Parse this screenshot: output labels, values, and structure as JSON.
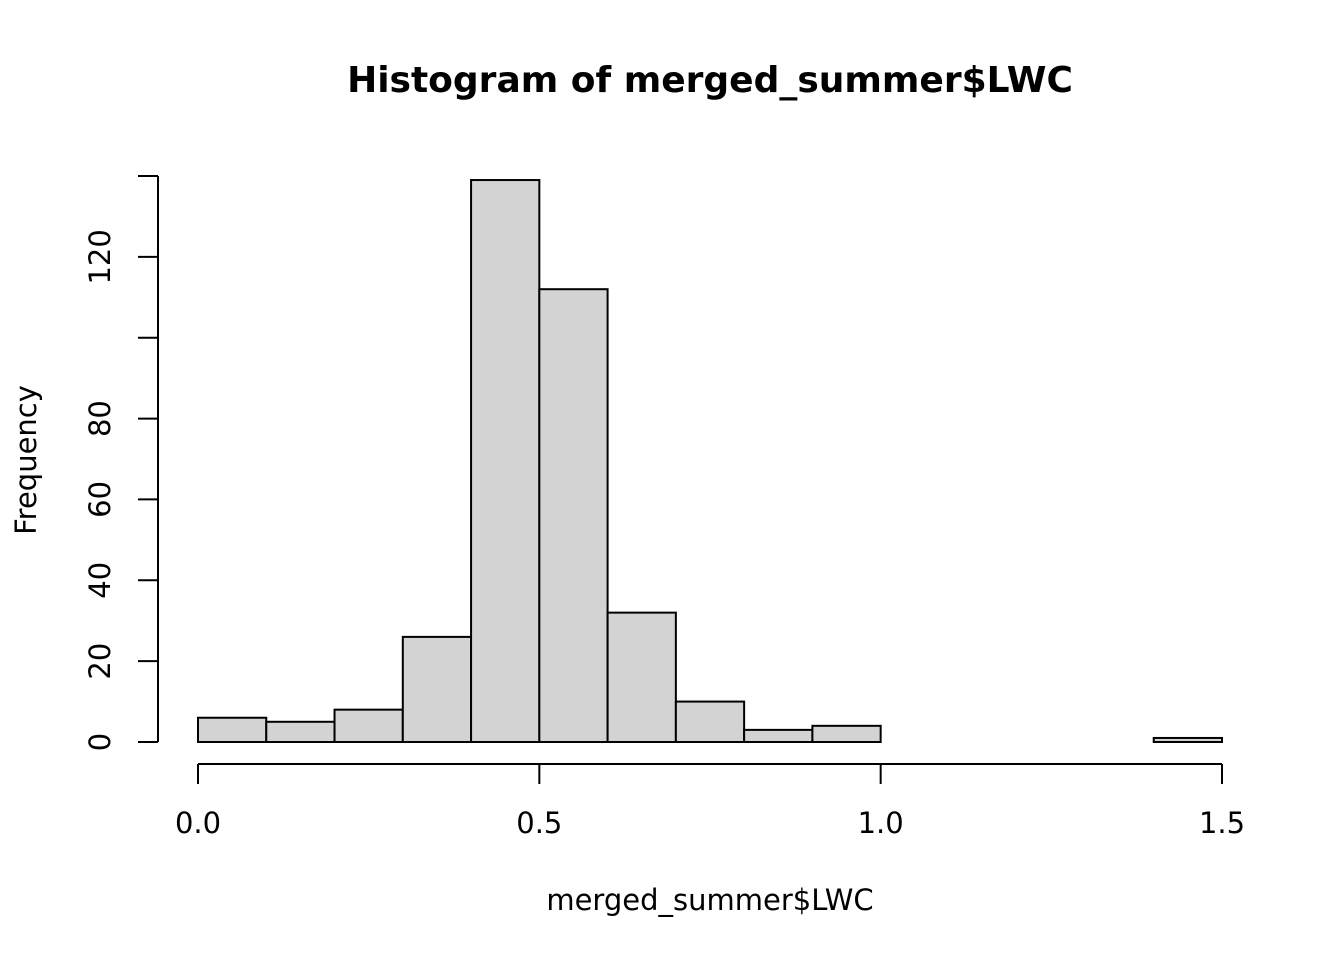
{
  "chart_data": {
    "type": "bar",
    "title": "Histogram of merged_summer$LWC",
    "xlabel": "merged_summer$LWC",
    "ylabel": "Frequency",
    "bin_edges": [
      0.0,
      0.1,
      0.2,
      0.3,
      0.4,
      0.5,
      0.6,
      0.7,
      0.8,
      0.9,
      1.0,
      1.1,
      1.2,
      1.3,
      1.4,
      1.5
    ],
    "values": [
      6,
      5,
      8,
      26,
      139,
      112,
      32,
      10,
      3,
      4,
      0,
      0,
      0,
      0,
      1
    ],
    "xlim": [
      0.0,
      1.5
    ],
    "ylim": [
      0,
      140
    ],
    "x_ticks": [
      0.0,
      0.5,
      1.0,
      1.5
    ],
    "x_tick_labels": [
      "0.0",
      "0.5",
      "1.0",
      "1.5"
    ],
    "y_ticks": [
      0,
      20,
      40,
      60,
      80,
      100,
      120,
      140
    ],
    "y_tick_labels": [
      "0",
      "20",
      "40",
      "60",
      "80",
      "",
      "120",
      ""
    ],
    "bar_color": "#d3d3d3",
    "grid": false
  }
}
